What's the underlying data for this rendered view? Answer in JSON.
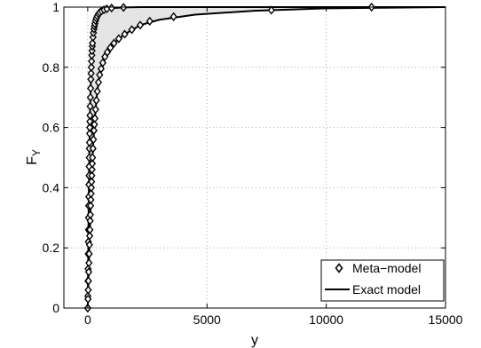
{
  "chart_data": {
    "type": "line",
    "title": "",
    "xlabel": "y",
    "ylabel": "F",
    "ylabel_subscript": "Y",
    "xlim": [
      -1000,
      15000
    ],
    "ylim": [
      0,
      1
    ],
    "xticks": [
      0,
      5000,
      10000,
      15000
    ],
    "xtick_labels": [
      "0",
      "5000",
      "10000",
      "15000"
    ],
    "yticks": [
      0,
      0.2,
      0.4,
      0.6,
      0.8,
      1
    ],
    "ytick_labels": [
      "0",
      "0.2",
      "0.4",
      "0.6",
      "0.8",
      "1"
    ],
    "grid": true,
    "legend_position": "bottom-right",
    "shaded_band": {
      "color": "#e4e4e4"
    },
    "series": [
      {
        "name": "Meta−model",
        "style": "markers",
        "marker": "diamond",
        "curves": [
          {
            "x": [
              0,
              5,
              10,
              15,
              20,
              25,
              30,
              35,
              40,
              45,
              50,
              55,
              60,
              65,
              70,
              75,
              80,
              85,
              90,
              95,
              100,
              110,
              120,
              130,
              140,
              150,
              160,
              170,
              180,
              190,
              200,
              220,
              240,
              260,
              280,
              300,
              330,
              360,
              400,
              450,
              500,
              580,
              680,
              800,
              1000,
              1500
            ],
            "y": [
              0.0,
              0.04,
              0.09,
              0.13,
              0.18,
              0.22,
              0.26,
              0.3,
              0.34,
              0.37,
              0.41,
              0.44,
              0.47,
              0.5,
              0.53,
              0.55,
              0.58,
              0.6,
              0.62,
              0.64,
              0.67,
              0.7,
              0.73,
              0.76,
              0.78,
              0.8,
              0.82,
              0.84,
              0.855,
              0.87,
              0.88,
              0.9,
              0.915,
              0.927,
              0.937,
              0.945,
              0.955,
              0.963,
              0.97,
              0.977,
              0.982,
              0.987,
              0.991,
              0.994,
              0.997,
              0.999
            ]
          },
          {
            "x": [
              0,
              10,
              20,
              30,
              40,
              50,
              60,
              70,
              80,
              90,
              100,
              110,
              120,
              130,
              140,
              150,
              160,
              170,
              180,
              190,
              200,
              220,
              240,
              260,
              280,
              300,
              330,
              360,
              400,
              450,
              500,
              560,
              630,
              720,
              820,
              950,
              1100,
              1300,
              1550,
              1850,
              2200,
              2600,
              3600,
              7700,
              11900
            ],
            "y": [
              0.0,
              0.03,
              0.06,
              0.09,
              0.12,
              0.15,
              0.18,
              0.21,
              0.24,
              0.26,
              0.29,
              0.31,
              0.34,
              0.36,
              0.38,
              0.4,
              0.42,
              0.44,
              0.46,
              0.48,
              0.5,
              0.53,
              0.56,
              0.59,
              0.61,
              0.63,
              0.66,
              0.69,
              0.72,
              0.75,
              0.775,
              0.795,
              0.815,
              0.835,
              0.85,
              0.865,
              0.88,
              0.895,
              0.91,
              0.925,
              0.94,
              0.953,
              0.968,
              0.99,
              1.0
            ]
          }
        ]
      },
      {
        "name": "Exact model",
        "style": "line",
        "curves": [
          {
            "x": [
              0,
              10,
              20,
              30,
              40,
              50,
              60,
              70,
              80,
              90,
              100,
              120,
              140,
              160,
              180,
              200,
              240,
              280,
              330,
              400,
              500,
              650,
              850,
              1100,
              1500,
              2200,
              3500,
              6000,
              10000,
              15000
            ],
            "y": [
              0.0,
              0.09,
              0.18,
              0.26,
              0.34,
              0.41,
              0.47,
              0.53,
              0.58,
              0.62,
              0.67,
              0.73,
              0.78,
              0.82,
              0.855,
              0.88,
              0.915,
              0.937,
              0.955,
              0.97,
              0.982,
              0.99,
              0.995,
              0.997,
              0.999,
              1.0,
              1.0,
              1.0,
              1.0,
              1.0
            ]
          },
          {
            "x": [
              0,
              20,
              40,
              60,
              80,
              100,
              120,
              140,
              160,
              180,
              200,
              240,
              280,
              330,
              400,
              500,
              630,
              820,
              1100,
              1550,
              2200,
              3000,
              4500,
              7000,
              10000,
              15000
            ],
            "y": [
              0.0,
              0.06,
              0.12,
              0.18,
              0.24,
              0.29,
              0.34,
              0.38,
              0.42,
              0.46,
              0.5,
              0.56,
              0.61,
              0.66,
              0.72,
              0.775,
              0.815,
              0.85,
              0.88,
              0.91,
              0.94,
              0.958,
              0.975,
              0.988,
              0.996,
              1.0
            ]
          }
        ]
      }
    ]
  }
}
